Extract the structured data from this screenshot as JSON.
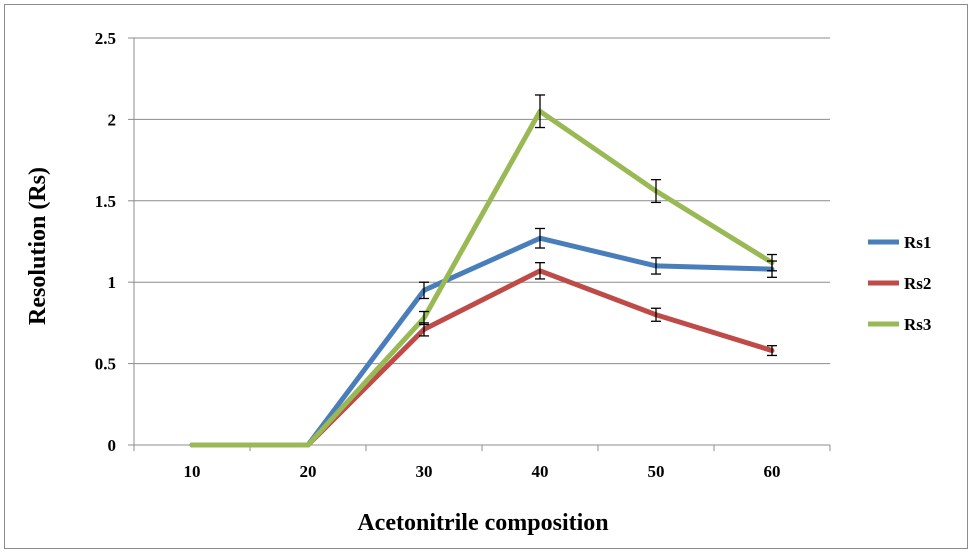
{
  "chart_data": {
    "type": "line",
    "title": "",
    "xlabel": "Acetonitrile composition",
    "ylabel": "Resolution (Rs)",
    "categories": [
      "10",
      "20",
      "30",
      "40",
      "50",
      "60"
    ],
    "ylim": [
      0,
      2.5
    ],
    "yticks": [
      "0",
      "0.5",
      "1",
      "1.5",
      "2",
      "2.5"
    ],
    "grid": "horizontal",
    "legend_position": "right",
    "series": [
      {
        "name": "Rs1",
        "color": "#4a7ebb",
        "values": [
          0,
          0,
          0.95,
          1.27,
          1.1,
          1.08
        ],
        "error": [
          0,
          0,
          0.05,
          0.06,
          0.05,
          0.05
        ]
      },
      {
        "name": "Rs2",
        "color": "#be4b48",
        "values": [
          0,
          0,
          0.71,
          1.07,
          0.8,
          0.58
        ],
        "error": [
          0,
          0,
          0.04,
          0.05,
          0.04,
          0.03
        ]
      },
      {
        "name": "Rs3",
        "color": "#98b954",
        "values": [
          0,
          0,
          0.78,
          2.05,
          1.56,
          1.12
        ],
        "error": [
          0,
          0,
          0.04,
          0.1,
          0.07,
          0.05
        ]
      }
    ]
  }
}
